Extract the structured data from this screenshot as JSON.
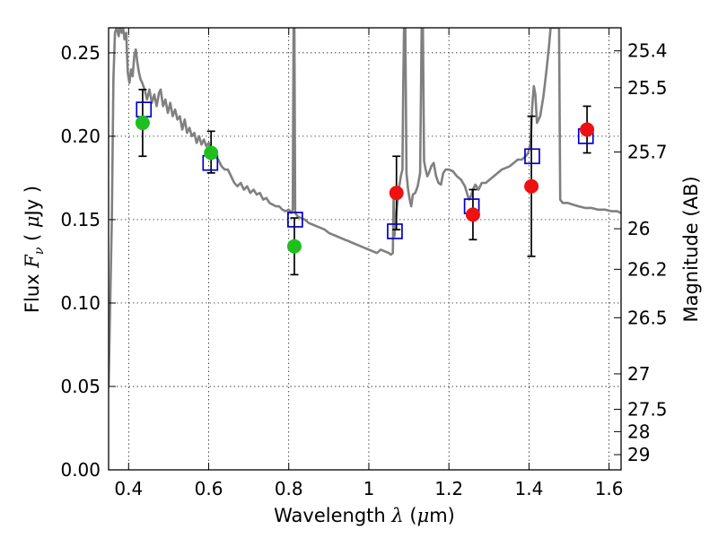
{
  "chart_data": {
    "type": "scatter",
    "title": "",
    "xlabel": "Wavelength  λ (μm)",
    "ylabel": "Flux  F_ν  ( μJy )",
    "ylabel_right": "Magnitude (AB)",
    "xlim": [
      0.35,
      1.63
    ],
    "ylim": [
      0.0,
      0.265
    ],
    "grid": true,
    "x_ticks": [
      {
        "value": 0.4,
        "label": "0.4"
      },
      {
        "value": 0.6,
        "label": "0.6"
      },
      {
        "value": 0.8,
        "label": "0.8"
      },
      {
        "value": 1.0,
        "label": "1"
      },
      {
        "value": 1.2,
        "label": "1.2"
      },
      {
        "value": 1.4,
        "label": "1.4"
      },
      {
        "value": 1.6,
        "label": "1.6"
      }
    ],
    "y_ticks": [
      {
        "value": 0.0,
        "label": "0.00"
      },
      {
        "value": 0.05,
        "label": "0.05"
      },
      {
        "value": 0.1,
        "label": "0.10"
      },
      {
        "value": 0.15,
        "label": "0.15"
      },
      {
        "value": 0.2,
        "label": "0.20"
      },
      {
        "value": 0.25,
        "label": "0.25"
      }
    ],
    "right_ticks": [
      {
        "value": 25.4,
        "label": "25.4"
      },
      {
        "value": 25.5,
        "label": "25.5"
      },
      {
        "value": 25.7,
        "label": "25.7"
      },
      {
        "value": 26.0,
        "label": "26"
      },
      {
        "value": 26.2,
        "label": "26.2"
      },
      {
        "value": 26.5,
        "label": "26.5"
      },
      {
        "value": 27.0,
        "label": "27"
      },
      {
        "value": 27.5,
        "label": "27.5"
      },
      {
        "value": 28.0,
        "label": "28"
      },
      {
        "value": 29.0,
        "label": "29"
      }
    ],
    "series": [
      {
        "kind": "observed-optical",
        "color": "#1fbf1f",
        "points": [
          {
            "x": 0.435,
            "y": 0.208,
            "yerr_low": 0.188,
            "yerr_high": 0.228
          },
          {
            "x": 0.606,
            "y": 0.19,
            "yerr_low": 0.178,
            "yerr_high": 0.203
          },
          {
            "x": 0.814,
            "y": 0.134,
            "yerr_low": 0.117,
            "yerr_high": 0.151
          }
        ]
      },
      {
        "kind": "observed-infrared",
        "color": "#ee1111",
        "points": [
          {
            "x": 1.069,
            "y": 0.166,
            "yerr_low": 0.144,
            "yerr_high": 0.188
          },
          {
            "x": 1.26,
            "y": 0.153,
            "yerr_low": 0.138,
            "yerr_high": 0.168
          },
          {
            "x": 1.406,
            "y": 0.17,
            "yerr_low": 0.128,
            "yerr_high": 0.212
          },
          {
            "x": 1.545,
            "y": 0.204,
            "yerr_low": 0.19,
            "yerr_high": 0.218
          }
        ]
      },
      {
        "kind": "model-photometry",
        "color": "#0000cc",
        "points": [
          {
            "x": 0.438,
            "y": 0.216
          },
          {
            "x": 0.604,
            "y": 0.184
          },
          {
            "x": 0.816,
            "y": 0.15
          },
          {
            "x": 1.065,
            "y": 0.143
          },
          {
            "x": 1.257,
            "y": 0.158
          },
          {
            "x": 1.408,
            "y": 0.188
          },
          {
            "x": 1.542,
            "y": 0.2
          }
        ]
      },
      {
        "kind": "model-spectrum",
        "color": "#808080",
        "points": [
          [
            0.35,
            0.05
          ],
          [
            0.358,
            0.15
          ],
          [
            0.362,
            0.235
          ],
          [
            0.366,
            0.262
          ],
          [
            0.37,
            0.265
          ],
          [
            0.375,
            0.26
          ],
          [
            0.378,
            0.265
          ],
          [
            0.383,
            0.262
          ],
          [
            0.386,
            0.265
          ],
          [
            0.39,
            0.258
          ],
          [
            0.394,
            0.262
          ],
          [
            0.398,
            0.238
          ],
          [
            0.402,
            0.232
          ],
          [
            0.406,
            0.24
          ],
          [
            0.41,
            0.236
          ],
          [
            0.414,
            0.248
          ],
          [
            0.418,
            0.252
          ],
          [
            0.422,
            0.244
          ],
          [
            0.426,
            0.238
          ],
          [
            0.43,
            0.234
          ],
          [
            0.434,
            0.232
          ],
          [
            0.44,
            0.228
          ],
          [
            0.446,
            0.222
          ],
          [
            0.452,
            0.228
          ],
          [
            0.458,
            0.22
          ],
          [
            0.464,
            0.225
          ],
          [
            0.47,
            0.218
          ],
          [
            0.476,
            0.226
          ],
          [
            0.48,
            0.228
          ],
          [
            0.486,
            0.218
          ],
          [
            0.492,
            0.222
          ],
          [
            0.498,
            0.214
          ],
          [
            0.504,
            0.22
          ],
          [
            0.51,
            0.212
          ],
          [
            0.516,
            0.216
          ],
          [
            0.522,
            0.21
          ],
          [
            0.528,
            0.212
          ],
          [
            0.534,
            0.204
          ],
          [
            0.54,
            0.21
          ],
          [
            0.546,
            0.202
          ],
          [
            0.552,
            0.205
          ],
          [
            0.558,
            0.2
          ],
          [
            0.564,
            0.202
          ],
          [
            0.57,
            0.196
          ],
          [
            0.576,
            0.2
          ],
          [
            0.582,
            0.195
          ],
          [
            0.588,
            0.198
          ],
          [
            0.594,
            0.194
          ],
          [
            0.6,
            0.196
          ],
          [
            0.608,
            0.19
          ],
          [
            0.616,
            0.188
          ],
          [
            0.624,
            0.186
          ],
          [
            0.632,
            0.182
          ],
          [
            0.64,
            0.18
          ],
          [
            0.648,
            0.18
          ],
          [
            0.656,
            0.176
          ],
          [
            0.664,
            0.172
          ],
          [
            0.672,
            0.17
          ],
          [
            0.68,
            0.172
          ],
          [
            0.688,
            0.168
          ],
          [
            0.696,
            0.17
          ],
          [
            0.704,
            0.166
          ],
          [
            0.712,
            0.168
          ],
          [
            0.72,
            0.165
          ],
          [
            0.728,
            0.166
          ],
          [
            0.736,
            0.162
          ],
          [
            0.744,
            0.163
          ],
          [
            0.752,
            0.16
          ],
          [
            0.76,
            0.159
          ],
          [
            0.768,
            0.158
          ],
          [
            0.776,
            0.158
          ],
          [
            0.784,
            0.156
          ],
          [
            0.792,
            0.155
          ],
          [
            0.8,
            0.156
          ],
          [
            0.806,
            0.154
          ],
          [
            0.81,
            0.156
          ],
          [
            0.812,
            0.265
          ],
          [
            0.814,
            0.265
          ],
          [
            0.816,
            0.154
          ],
          [
            0.822,
            0.152
          ],
          [
            0.83,
            0.151
          ],
          [
            0.84,
            0.15
          ],
          [
            0.85,
            0.148
          ],
          [
            0.86,
            0.147
          ],
          [
            0.87,
            0.146
          ],
          [
            0.88,
            0.145
          ],
          [
            0.89,
            0.144
          ],
          [
            0.9,
            0.142
          ],
          [
            0.91,
            0.141
          ],
          [
            0.92,
            0.14
          ],
          [
            0.93,
            0.139
          ],
          [
            0.94,
            0.138
          ],
          [
            0.95,
            0.137
          ],
          [
            0.96,
            0.136
          ],
          [
            0.97,
            0.135
          ],
          [
            0.98,
            0.134
          ],
          [
            0.99,
            0.133
          ],
          [
            1.0,
            0.132
          ],
          [
            1.01,
            0.131
          ],
          [
            1.02,
            0.13
          ],
          [
            1.03,
            0.132
          ],
          [
            1.04,
            0.131
          ],
          [
            1.05,
            0.13
          ],
          [
            1.055,
            0.129
          ],
          [
            1.06,
            0.13
          ],
          [
            1.062,
            0.165
          ],
          [
            1.064,
            0.14
          ],
          [
            1.068,
            0.152
          ],
          [
            1.072,
            0.162
          ],
          [
            1.076,
            0.17
          ],
          [
            1.08,
            0.176
          ],
          [
            1.084,
            0.18
          ],
          [
            1.086,
            0.23
          ],
          [
            1.088,
            0.265
          ],
          [
            1.091,
            0.265
          ],
          [
            1.094,
            0.178
          ],
          [
            1.098,
            0.168
          ],
          [
            1.102,
            0.162
          ],
          [
            1.106,
            0.158
          ],
          [
            1.11,
            0.165
          ],
          [
            1.116,
            0.166
          ],
          [
            1.122,
            0.17
          ],
          [
            1.128,
            0.178
          ],
          [
            1.132,
            0.265
          ],
          [
            1.135,
            0.265
          ],
          [
            1.138,
            0.185
          ],
          [
            1.142,
            0.18
          ],
          [
            1.146,
            0.176
          ],
          [
            1.15,
            0.178
          ],
          [
            1.156,
            0.182
          ],
          [
            1.162,
            0.184
          ],
          [
            1.168,
            0.176
          ],
          [
            1.174,
            0.172
          ],
          [
            1.18,
            0.171
          ],
          [
            1.186,
            0.178
          ],
          [
            1.192,
            0.18
          ],
          [
            1.2,
            0.18
          ],
          [
            1.21,
            0.179
          ],
          [
            1.22,
            0.176
          ],
          [
            1.23,
            0.174
          ],
          [
            1.24,
            0.17
          ],
          [
            1.245,
            0.166
          ],
          [
            1.25,
            0.162
          ],
          [
            1.255,
            0.164
          ],
          [
            1.26,
            0.168
          ],
          [
            1.266,
            0.171
          ],
          [
            1.274,
            0.168
          ],
          [
            1.282,
            0.172
          ],
          [
            1.292,
            0.172
          ],
          [
            1.302,
            0.174
          ],
          [
            1.312,
            0.176
          ],
          [
            1.322,
            0.178
          ],
          [
            1.332,
            0.18
          ],
          [
            1.342,
            0.181
          ],
          [
            1.352,
            0.182
          ],
          [
            1.362,
            0.184
          ],
          [
            1.372,
            0.186
          ],
          [
            1.382,
            0.186
          ],
          [
            1.392,
            0.188
          ],
          [
            1.398,
            0.19
          ],
          [
            1.404,
            0.196
          ],
          [
            1.408,
            0.218
          ],
          [
            1.412,
            0.23
          ],
          [
            1.416,
            0.225
          ],
          [
            1.42,
            0.208
          ],
          [
            1.428,
            0.212
          ],
          [
            1.436,
            0.224
          ],
          [
            1.444,
            0.24
          ],
          [
            1.45,
            0.254
          ],
          [
            1.454,
            0.265
          ],
          [
            1.462,
            0.265
          ],
          [
            1.47,
            0.265
          ],
          [
            1.475,
            0.265
          ],
          [
            1.478,
            0.162
          ],
          [
            1.484,
            0.16
          ],
          [
            1.496,
            0.16
          ],
          [
            1.51,
            0.159
          ],
          [
            1.524,
            0.158
          ],
          [
            1.54,
            0.157
          ],
          [
            1.556,
            0.157
          ],
          [
            1.572,
            0.156
          ],
          [
            1.59,
            0.156
          ],
          [
            1.606,
            0.155
          ],
          [
            1.62,
            0.155
          ],
          [
            1.63,
            0.154
          ]
        ]
      }
    ]
  }
}
